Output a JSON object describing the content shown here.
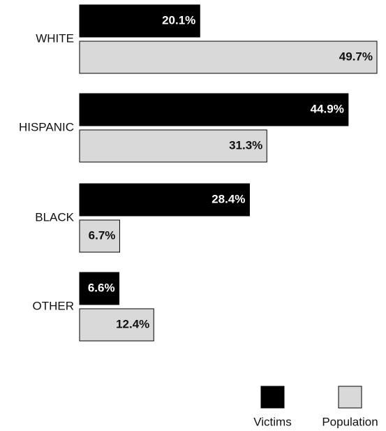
{
  "chart_data": {
    "type": "bar",
    "orientation": "horizontal",
    "categories": [
      "WHITE",
      "HISPANIC",
      "BLACK",
      "OTHER"
    ],
    "series": [
      {
        "name": "Victims",
        "values": [
          20.1,
          44.9,
          28.4,
          6.6
        ],
        "labels": [
          "20.1%",
          "44.9%",
          "28.4%",
          "6.6%"
        ],
        "color": "#000000",
        "label_color": "#ffffff"
      },
      {
        "name": "Population",
        "values": [
          49.7,
          31.3,
          6.7,
          12.4
        ],
        "labels": [
          "49.7%",
          "31.3%",
          "6.7%",
          "12.4%"
        ],
        "color": "#d9d9d9",
        "label_color": "#111111"
      }
    ],
    "value_unit": "%",
    "xlim": [
      0,
      50
    ],
    "title": "",
    "xlabel": "",
    "ylabel": "",
    "grid": false,
    "legend_position": "bottom-right"
  }
}
